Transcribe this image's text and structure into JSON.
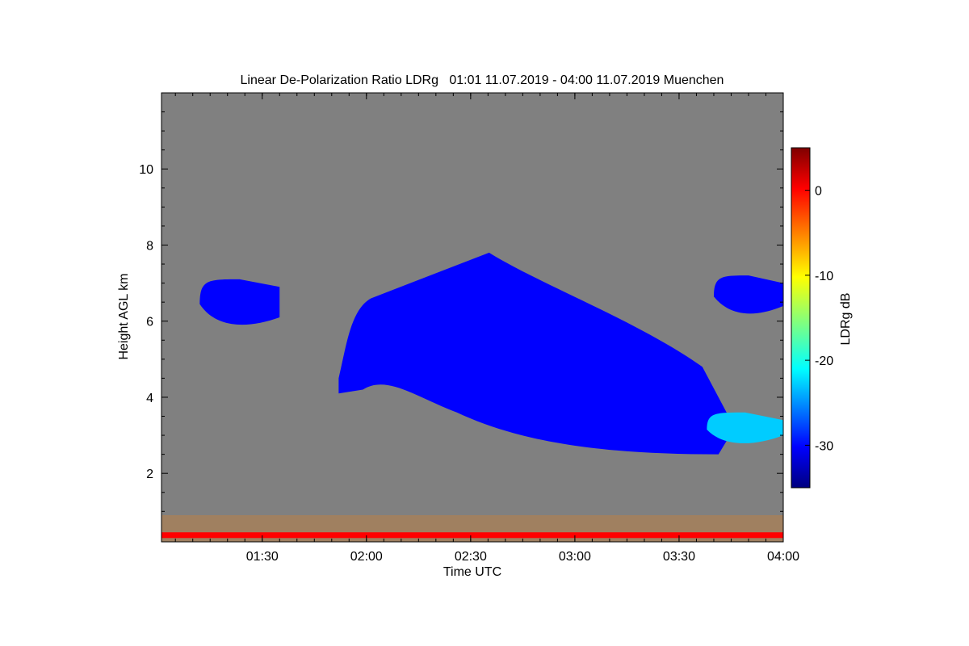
{
  "chart_data": {
    "type": "heatmap",
    "title": "Linear De-Polarization Ratio LDRg   01:01 11.07.2019 - 04:00 11.07.2019 Muenchen",
    "xlabel": "Time UTC",
    "ylabel": "Height AGL km",
    "x_range": [
      "01:01",
      "04:00"
    ],
    "y_range": [
      0.2,
      12.0
    ],
    "x_ticks": [
      "01:30",
      "02:00",
      "02:30",
      "03:00",
      "03:30",
      "04:00"
    ],
    "y_ticks": [
      "2",
      "4",
      "6",
      "8",
      "10"
    ],
    "background_color": "#808080",
    "colorbar": {
      "label": "LDRg dB",
      "range": [
        -35,
        5
      ],
      "ticks": [
        "0",
        "-10",
        "-20",
        "-30"
      ],
      "colormap": "jet"
    },
    "features": [
      {
        "description_value": "main cloud layer",
        "time_start": "01:52",
        "time_end": "03:46",
        "base_km": [
          4.1,
          2.5
        ],
        "top_km": [
          6.3,
          7.8
        ],
        "ldr_db": -30
      },
      {
        "description_value": "early cloud",
        "time_start": "01:12",
        "time_end": "01:35",
        "base_km": 5.8,
        "top_km": 7.1,
        "ldr_db": -30
      },
      {
        "description_value": "late cloud",
        "time_start": "03:40",
        "time_end": "04:00",
        "base_km": 6.1,
        "top_km": 7.2,
        "ldr_db": -30
      },
      {
        "description_value": "high LDR patch",
        "time_start": "03:38",
        "time_end": "04:00",
        "base_km": 2.7,
        "top_km": 3.6,
        "ldr_db": -22
      },
      {
        "description_value": "near-surface aerosol/noise",
        "time_start": "01:01",
        "time_end": "04:00",
        "base_km": 0.2,
        "top_km": 0.9,
        "ldr_db": -5
      }
    ]
  }
}
